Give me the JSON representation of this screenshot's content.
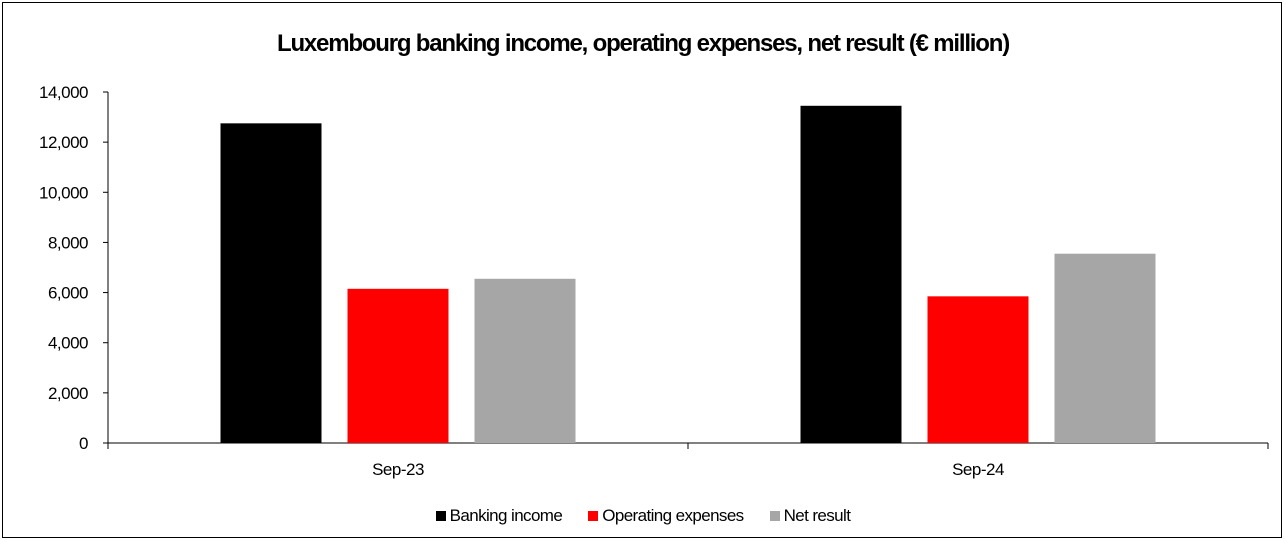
{
  "chart_data": {
    "type": "bar",
    "title": "Luxembourg banking income, operating expenses, net result (€ million)",
    "categories": [
      "Sep-23",
      "Sep-24"
    ],
    "series": [
      {
        "name": "Banking income",
        "values": [
          12750,
          13450
        ],
        "color": "#000000"
      },
      {
        "name": "Operating expenses",
        "values": [
          6150,
          5850
        ],
        "color": "#ff0000"
      },
      {
        "name": "Net result",
        "values": [
          6550,
          7550
        ],
        "color": "#a6a6a6"
      }
    ],
    "ylim": [
      0,
      14000
    ],
    "yticks": [
      0,
      2000,
      4000,
      6000,
      8000,
      10000,
      12000,
      14000
    ],
    "ytick_labels": [
      "0",
      "2,000",
      "4,000",
      "6,000",
      "8,000",
      "10,000",
      "12,000",
      "14,000"
    ],
    "xlabel": "",
    "ylabel": "",
    "grid": false,
    "legend_position": "bottom"
  }
}
